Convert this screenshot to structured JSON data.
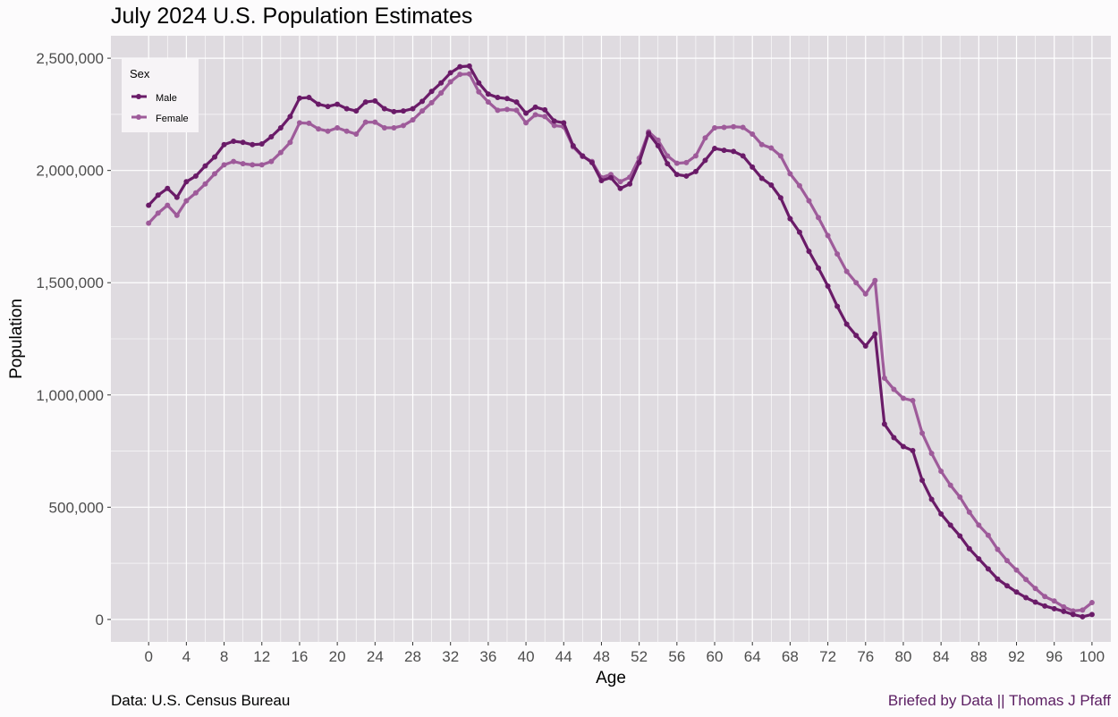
{
  "chart_data": {
    "type": "line",
    "title": "July 2024 U.S. Population Estimates",
    "xlabel": "Age",
    "ylabel": "Population",
    "xlim": [
      -4,
      102
    ],
    "ylim": [
      -100000,
      2600000
    ],
    "x_ticks": [
      0,
      4,
      8,
      12,
      16,
      20,
      24,
      28,
      32,
      36,
      40,
      44,
      48,
      52,
      56,
      60,
      64,
      68,
      72,
      76,
      80,
      84,
      88,
      92,
      96,
      100
    ],
    "y_ticks": [
      0,
      500000,
      1000000,
      1500000,
      2000000,
      2500000
    ],
    "y_tick_labels": [
      "0",
      "500,000",
      "1,000,000",
      "1,500,000",
      "2,000,000",
      "2,500,000"
    ],
    "grid": true,
    "legend": {
      "title": "Sex",
      "position": "top-left"
    },
    "x": [
      0,
      1,
      2,
      3,
      4,
      5,
      6,
      7,
      8,
      9,
      10,
      11,
      12,
      13,
      14,
      15,
      16,
      17,
      18,
      19,
      20,
      21,
      22,
      23,
      24,
      25,
      26,
      27,
      28,
      29,
      30,
      31,
      32,
      33,
      34,
      35,
      36,
      37,
      38,
      39,
      40,
      41,
      42,
      43,
      44,
      45,
      46,
      47,
      48,
      49,
      50,
      51,
      52,
      53,
      54,
      55,
      56,
      57,
      58,
      59,
      60,
      61,
      62,
      63,
      64,
      65,
      66,
      67,
      68,
      69,
      70,
      71,
      72,
      73,
      74,
      75,
      76,
      77,
      78,
      79,
      80,
      81,
      82,
      83,
      84,
      85,
      86,
      87,
      88,
      89,
      90,
      91,
      92,
      93,
      94,
      95,
      96,
      97,
      98,
      99,
      100
    ],
    "series": [
      {
        "name": "Male",
        "color": "#6a1b68",
        "values": [
          1845000,
          1890000,
          1920000,
          1880000,
          1950000,
          1975000,
          2020000,
          2060000,
          2115000,
          2130000,
          2125000,
          2115000,
          2118000,
          2150000,
          2190000,
          2240000,
          2322000,
          2325000,
          2295000,
          2285000,
          2295000,
          2275000,
          2265000,
          2305000,
          2310000,
          2275000,
          2262000,
          2265000,
          2275000,
          2308000,
          2352000,
          2390000,
          2435000,
          2462000,
          2465000,
          2390000,
          2340000,
          2325000,
          2320000,
          2305000,
          2255000,
          2282000,
          2270000,
          2220000,
          2212000,
          2110000,
          2065000,
          2035000,
          1955000,
          1968000,
          1920000,
          1940000,
          2035000,
          2165000,
          2110000,
          2030000,
          1982000,
          1975000,
          1995000,
          2045000,
          2098000,
          2090000,
          2085000,
          2065000,
          2015000,
          1965000,
          1935000,
          1878000,
          1785000,
          1725000,
          1640000,
          1565000,
          1485000,
          1395000,
          1315000,
          1265000,
          1218000,
          1272000,
          870000,
          810000,
          770000,
          752000,
          620000,
          535000,
          470000,
          420000,
          372000,
          315000,
          270000,
          225000,
          180000,
          150000,
          122000,
          97000,
          77000,
          60000,
          48000,
          36000,
          22000,
          12000,
          22000
        ]
      },
      {
        "name": "Female",
        "color": "#9e5b9a",
        "values": [
          1765000,
          1810000,
          1845000,
          1800000,
          1865000,
          1900000,
          1940000,
          1985000,
          2025000,
          2040000,
          2030000,
          2025000,
          2025000,
          2040000,
          2080000,
          2125000,
          2212000,
          2210000,
          2185000,
          2175000,
          2190000,
          2175000,
          2162000,
          2215000,
          2215000,
          2190000,
          2190000,
          2200000,
          2225000,
          2265000,
          2302000,
          2345000,
          2395000,
          2428000,
          2430000,
          2350000,
          2305000,
          2268000,
          2272000,
          2268000,
          2212000,
          2248000,
          2240000,
          2200000,
          2195000,
          2105000,
          2062000,
          2040000,
          1968000,
          1982000,
          1950000,
          1970000,
          2055000,
          2172000,
          2135000,
          2065000,
          2032000,
          2035000,
          2065000,
          2145000,
          2190000,
          2192000,
          2195000,
          2192000,
          2162000,
          2115000,
          2100000,
          2065000,
          1985000,
          1932000,
          1865000,
          1790000,
          1710000,
          1628000,
          1550000,
          1500000,
          1450000,
          1510000,
          1075000,
          1025000,
          985000,
          975000,
          830000,
          740000,
          660000,
          598000,
          545000,
          478000,
          420000,
          375000,
          312000,
          262000,
          220000,
          178000,
          138000,
          102000,
          82000,
          56000,
          38000,
          42000,
          75000
        ]
      }
    ]
  },
  "captions": {
    "source": "Data: U.S. Census Bureau",
    "credit": "Briefed by Data || Thomas J Pfaff"
  }
}
